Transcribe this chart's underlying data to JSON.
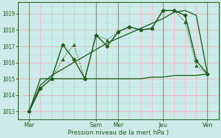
{
  "background_color": "#cceae7",
  "grid_color_major": "#e8c8cc",
  "grid_color_minor": "#dde8e6",
  "line_color": "#1a5c1a",
  "xlabel": "Pression niveau de la mer( hPa )",
  "ylim": [
    1012.5,
    1019.7
  ],
  "xlim": [
    0,
    9.0
  ],
  "yticks": [
    1013,
    1014,
    1015,
    1016,
    1017,
    1018,
    1019
  ],
  "xtick_labels": [
    "Mar",
    "Sam",
    "Mer",
    "Jeu",
    "Ven"
  ],
  "xtick_positions": [
    0.5,
    3.5,
    4.5,
    6.5,
    8.5
  ],
  "vline_positions": [
    0.5,
    3.5,
    4.5,
    6.5,
    8.5
  ],
  "series_flat_x": [
    0.5,
    1.0,
    1.5,
    2.0,
    2.5,
    3.0,
    3.5,
    4.0,
    4.5,
    5.0,
    5.5,
    6.0,
    6.5,
    7.0,
    7.5,
    8.0,
    8.5
  ],
  "series_flat_y": [
    1013.0,
    1015.0,
    1015.0,
    1015.0,
    1015.0,
    1015.0,
    1015.0,
    1015.0,
    1015.0,
    1015.0,
    1015.0,
    1015.1,
    1015.1,
    1015.2,
    1015.2,
    1015.2,
    1015.3
  ],
  "series_diag_x": [
    0.5,
    1.0,
    1.5,
    2.0,
    2.5,
    3.0,
    3.5,
    4.0,
    4.5,
    5.0,
    5.5,
    6.0,
    6.5,
    7.0,
    7.5,
    8.0,
    8.5
  ],
  "series_diag_y": [
    1013.0,
    1014.6,
    1015.2,
    1015.6,
    1016.0,
    1016.4,
    1016.8,
    1017.2,
    1017.5,
    1017.8,
    1018.1,
    1018.4,
    1018.7,
    1019.1,
    1019.2,
    1018.9,
    1015.3
  ],
  "series_dot_x": [
    0.5,
    1.0,
    1.5,
    2.0,
    2.5,
    3.0,
    3.5,
    4.0,
    4.5,
    5.0,
    5.5,
    6.0,
    6.5,
    7.0,
    7.5,
    8.0,
    8.5
  ],
  "series_dot_y": [
    1013.0,
    1014.4,
    1015.0,
    1016.2,
    1017.1,
    1015.0,
    1017.7,
    1017.4,
    1017.9,
    1018.2,
    1018.0,
    1018.1,
    1019.2,
    1019.2,
    1018.5,
    1015.8,
    1015.3
  ],
  "series_main_x": [
    0.5,
    1.0,
    1.5,
    2.0,
    2.5,
    3.0,
    3.5,
    4.0,
    4.5,
    5.0,
    5.5,
    6.0,
    6.5,
    7.0,
    7.5,
    8.0,
    8.5
  ],
  "series_main_y": [
    1013.0,
    1014.4,
    1015.0,
    1017.1,
    1016.2,
    1015.0,
    1017.7,
    1017.0,
    1017.9,
    1018.2,
    1018.0,
    1018.1,
    1019.2,
    1019.2,
    1018.9,
    1016.1,
    1015.3
  ]
}
